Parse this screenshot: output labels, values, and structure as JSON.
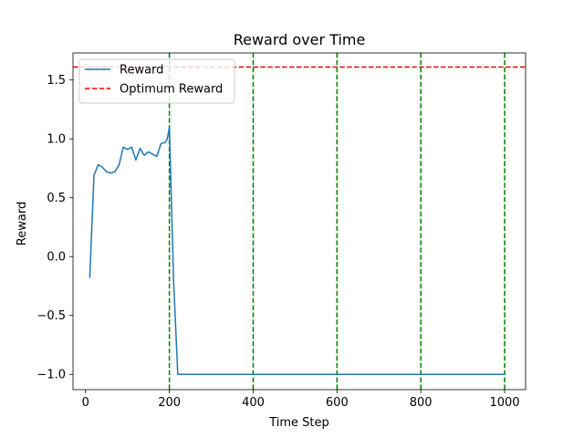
{
  "chart_data": {
    "type": "line",
    "title": "Reward over Time",
    "xlabel": "Time Step",
    "ylabel": "Reward",
    "xlim": [
      -30,
      1050
    ],
    "ylim": [
      -1.13,
      1.73
    ],
    "xticks": [
      0,
      200,
      400,
      600,
      800,
      1000
    ],
    "yticks": [
      -1.0,
      -0.5,
      0.0,
      0.5,
      1.0,
      1.5
    ],
    "xtick_labels": [
      "0",
      "200",
      "400",
      "600",
      "800",
      "1000"
    ],
    "ytick_labels": [
      "−1.0",
      "−0.5",
      "0.0",
      "0.5",
      "1.0",
      "1.5"
    ],
    "grid": false,
    "legend_position": "top-left",
    "series": [
      {
        "name": "Reward",
        "color": "#1f77b4",
        "style": "solid",
        "x": [
          10,
          20,
          30,
          40,
          50,
          60,
          70,
          80,
          90,
          100,
          110,
          120,
          130,
          140,
          150,
          160,
          170,
          180,
          190,
          195,
          200,
          210,
          220,
          1000
        ],
        "y": [
          -0.18,
          0.69,
          0.78,
          0.76,
          0.72,
          0.71,
          0.72,
          0.78,
          0.93,
          0.91,
          0.93,
          0.82,
          0.92,
          0.86,
          0.89,
          0.87,
          0.85,
          0.96,
          0.97,
          1.0,
          1.1,
          -0.2,
          -1.0,
          -1.0
        ]
      },
      {
        "name": "Optimum Reward",
        "color": "#ff0000",
        "style": "dashed",
        "orientation": "horizontal",
        "y": 1.61
      }
    ],
    "vlines": {
      "color": "#008000",
      "style": "dashed",
      "x": [
        200,
        400,
        600,
        800,
        1000
      ]
    }
  }
}
